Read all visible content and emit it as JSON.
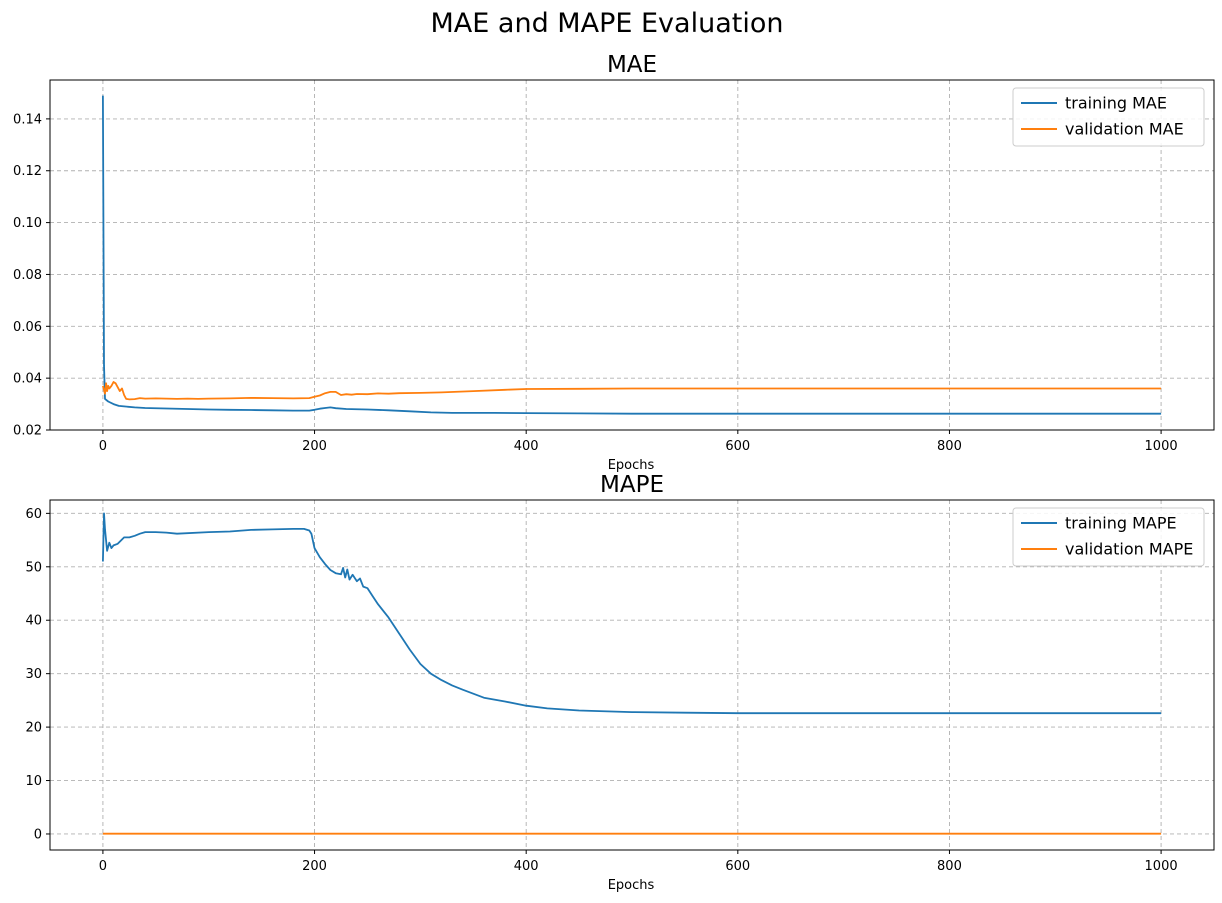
{
  "figure": {
    "title": "MAE and MAPE Evaluation"
  },
  "chart_data": [
    {
      "type": "line",
      "title": "MAE",
      "xlabel": "Epochs",
      "ylabel": "",
      "xlim": [
        -50,
        1050
      ],
      "ylim": [
        0.02,
        0.155
      ],
      "xticks": [
        0,
        200,
        400,
        600,
        800,
        1000
      ],
      "yticks": [
        0.02,
        0.04,
        0.06,
        0.08,
        0.1,
        0.12,
        0.14
      ],
      "xtick_labels": [
        "0",
        "200",
        "400",
        "600",
        "800",
        "1000"
      ],
      "ytick_labels": [
        "0.02",
        "0.04",
        "0.06",
        "0.08",
        "0.10",
        "0.12",
        "0.14"
      ],
      "grid": true,
      "legend": "top-right",
      "series": [
        {
          "name": "training MAE",
          "color": "#1f77b4",
          "x": [
            0,
            1,
            2,
            5,
            10,
            15,
            20,
            30,
            40,
            60,
            80,
            100,
            120,
            140,
            160,
            180,
            195,
            200,
            205,
            210,
            215,
            220,
            230,
            250,
            270,
            290,
            310,
            330,
            350,
            370,
            400,
            450,
            500,
            600,
            700,
            800,
            900,
            1000
          ],
          "y": [
            0.149,
            0.045,
            0.032,
            0.031,
            0.03,
            0.0293,
            0.0291,
            0.0287,
            0.0285,
            0.0283,
            0.0281,
            0.0279,
            0.0278,
            0.0277,
            0.0276,
            0.0275,
            0.0275,
            0.0278,
            0.0282,
            0.0285,
            0.0287,
            0.0284,
            0.0281,
            0.0279,
            0.0276,
            0.0272,
            0.0268,
            0.0266,
            0.0266,
            0.0266,
            0.0265,
            0.0264,
            0.0263,
            0.0263,
            0.0263,
            0.0263,
            0.0263,
            0.0263
          ]
        },
        {
          "name": "validation MAE",
          "color": "#ff7f0e",
          "x": [
            0,
            2,
            3,
            4,
            5,
            6,
            8,
            10,
            12,
            14,
            16,
            18,
            20,
            22,
            25,
            30,
            35,
            40,
            50,
            60,
            70,
            80,
            90,
            100,
            120,
            140,
            160,
            180,
            195,
            200,
            205,
            210,
            215,
            220,
            225,
            230,
            235,
            240,
            250,
            260,
            270,
            280,
            300,
            320,
            350,
            380,
            400,
            450,
            500,
            600,
            700,
            800,
            900,
            1000
          ],
          "y": [
            0.037,
            0.034,
            0.038,
            0.035,
            0.037,
            0.036,
            0.037,
            0.0385,
            0.038,
            0.0365,
            0.035,
            0.036,
            0.0335,
            0.032,
            0.0318,
            0.0319,
            0.0323,
            0.0321,
            0.0322,
            0.0321,
            0.032,
            0.0321,
            0.032,
            0.0321,
            0.0322,
            0.0324,
            0.0323,
            0.0322,
            0.0323,
            0.0328,
            0.0333,
            0.0342,
            0.0347,
            0.0347,
            0.0335,
            0.0338,
            0.0336,
            0.0339,
            0.0338,
            0.0341,
            0.034,
            0.0342,
            0.0343,
            0.0345,
            0.035,
            0.0355,
            0.0358,
            0.0359,
            0.036,
            0.036,
            0.036,
            0.036,
            0.036,
            0.036
          ]
        }
      ]
    },
    {
      "type": "line",
      "title": "MAPE",
      "xlabel": "Epochs",
      "ylabel": "",
      "xlim": [
        -50,
        1050
      ],
      "ylim": [
        -3,
        62.5
      ],
      "xticks": [
        0,
        200,
        400,
        600,
        800,
        1000
      ],
      "yticks": [
        0,
        10,
        20,
        30,
        40,
        50,
        60
      ],
      "xtick_labels": [
        "0",
        "200",
        "400",
        "600",
        "800",
        "1000"
      ],
      "ytick_labels": [
        "0",
        "10",
        "20",
        "30",
        "40",
        "50",
        "60"
      ],
      "grid": true,
      "legend": "top-right",
      "series": [
        {
          "name": "training MAPE",
          "color": "#1f77b4",
          "x": [
            0,
            1,
            2,
            4,
            6,
            8,
            10,
            14,
            20,
            25,
            30,
            35,
            40,
            50,
            60,
            70,
            100,
            120,
            140,
            160,
            180,
            190,
            195,
            197,
            200,
            205,
            210,
            215,
            220,
            225,
            227,
            229,
            231,
            233,
            236,
            240,
            243,
            246,
            250,
            255,
            260,
            270,
            280,
            290,
            300,
            310,
            320,
            330,
            340,
            360,
            380,
            400,
            420,
            450,
            500,
            550,
            600,
            700,
            800,
            900,
            1000
          ],
          "y": [
            51,
            60,
            57,
            53,
            54.5,
            53.5,
            54,
            54.3,
            55.5,
            55.5,
            55.8,
            56.2,
            56.5,
            56.5,
            56.4,
            56.2,
            56.5,
            56.6,
            56.9,
            57,
            57.1,
            57.1,
            56.8,
            56.2,
            53.5,
            51.8,
            50.5,
            49.4,
            48.8,
            48.6,
            49.8,
            48,
            49.5,
            47.6,
            48.5,
            47.3,
            47.8,
            46.3,
            46,
            44.5,
            43,
            40.5,
            37.5,
            34.5,
            31.8,
            30,
            28.8,
            27.8,
            27,
            25.5,
            24.8,
            24,
            23.5,
            23.1,
            22.8,
            22.7,
            22.6,
            22.6,
            22.6,
            22.6,
            22.6
          ]
        },
        {
          "name": "validation MAPE",
          "color": "#ff7f0e",
          "x": [
            0,
            1000
          ],
          "y": [
            0.05,
            0.05
          ]
        }
      ]
    }
  ]
}
